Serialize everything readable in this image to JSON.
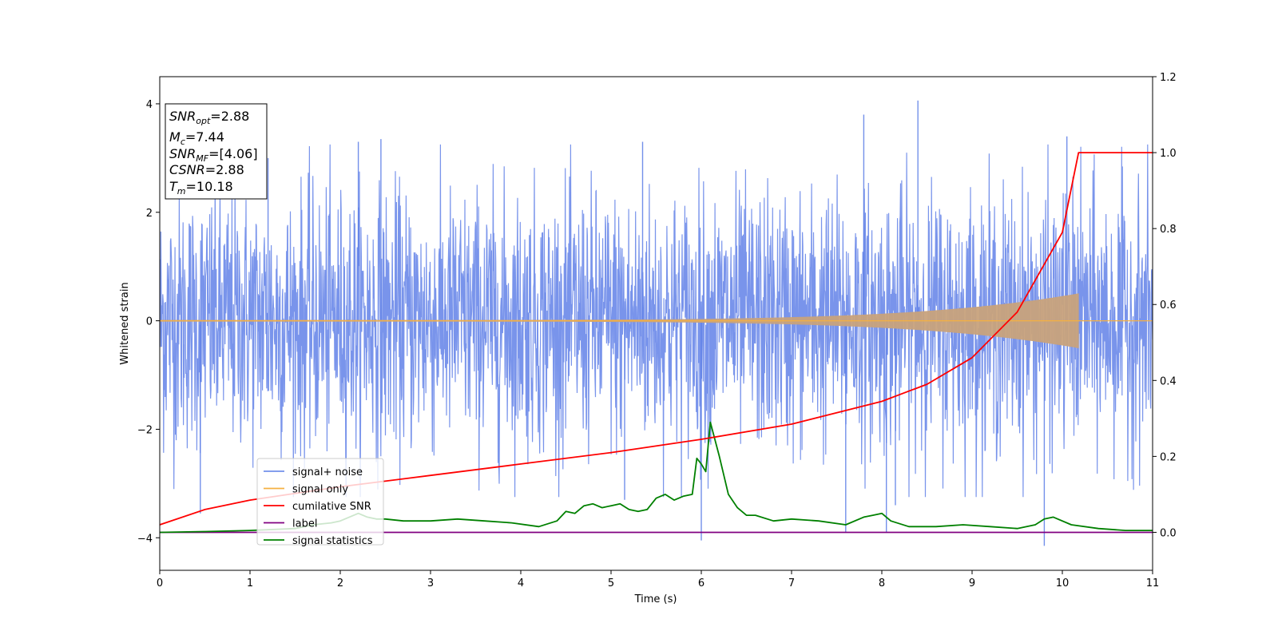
{
  "chart_data": {
    "type": "line",
    "xlabel": "Time (s)",
    "ylabel": "Whitened strain",
    "xlim": [
      0,
      11
    ],
    "ylim_left": [
      -4.6,
      4.5
    ],
    "ylim_right": [
      -0.1,
      1.2
    ],
    "x_ticks": [
      0,
      1,
      2,
      3,
      4,
      5,
      6,
      7,
      8,
      9,
      10,
      11
    ],
    "y_ticks_left": [
      -4,
      -2,
      0,
      2,
      4
    ],
    "y_ticks_right": [
      0.0,
      0.2,
      0.4,
      0.6,
      0.8,
      1.0,
      1.2
    ],
    "y_tick_labels_right": [
      "0.0",
      "0.2",
      "0.4",
      "0.6",
      "0.8",
      "1.0",
      "1.2"
    ],
    "grid": false,
    "legend_position": "lower-left",
    "annotation": {
      "snr_opt": {
        "base": "SNR",
        "sub": "opt",
        "value": "=2.88"
      },
      "mc": {
        "base": "M",
        "sub": "c",
        "value": "=7.44"
      },
      "snr_mf": {
        "base": "SNR",
        "sub": "MF",
        "value": "=[4.06]"
      },
      "csnr": {
        "base": "CSNR",
        "value": "=2.88"
      },
      "tm": {
        "base": "T",
        "sub": "m",
        "value": "=10.18"
      }
    },
    "series": [
      {
        "name": "signal+ noise",
        "axis": "left",
        "color": "#5b7ce6",
        "description_values": {
          "mean": 0,
          "typical_range": [
            -2.6,
            2.6
          ],
          "extreme_max": 4.06,
          "extreme_min": -4.15,
          "spikes": [
            [
              0.45,
              -3.55
            ],
            [
              1.2,
              3.0
            ],
            [
              2.2,
              3.3
            ],
            [
              2.45,
              3.35
            ],
            [
              5.15,
              -3.3
            ],
            [
              5.35,
              3.3
            ],
            [
              6.0,
              -4.05
            ],
            [
              7.6,
              -3.9
            ],
            [
              7.8,
              3.8
            ],
            [
              8.05,
              -3.9
            ],
            [
              8.15,
              -3.4
            ],
            [
              8.4,
              4.06
            ],
            [
              9.8,
              -4.15
            ],
            [
              10.05,
              3.4
            ]
          ]
        }
      },
      {
        "name": "signal only",
        "axis": "left",
        "color": "#f5b041",
        "chirp": {
          "start": 0,
          "end": 10.18,
          "amplitude_start": 0.01,
          "amplitude_end": 0.5
        }
      },
      {
        "name": "cumilative SNR",
        "axis": "right",
        "color": "#ff0000",
        "x": [
          0,
          0.5,
          1,
          2,
          3,
          4,
          5,
          6,
          7,
          8,
          8.5,
          9,
          9.5,
          10,
          10.18,
          11
        ],
        "values": [
          0.02,
          0.06,
          0.085,
          0.12,
          0.15,
          0.18,
          0.21,
          0.245,
          0.285,
          0.345,
          0.39,
          0.46,
          0.58,
          0.79,
          1.0,
          1.0
        ]
      },
      {
        "name": "label",
        "axis": "right",
        "color": "#800080",
        "x": [
          0,
          11
        ],
        "values": [
          0.0,
          0.0
        ]
      },
      {
        "name": "signal statistics",
        "axis": "right",
        "color": "#008000",
        "x": [
          0,
          0.5,
          1.0,
          1.5,
          1.7,
          1.9,
          2.0,
          2.1,
          2.2,
          2.3,
          2.4,
          2.5,
          2.7,
          3.0,
          3.3,
          3.6,
          3.9,
          4.2,
          4.4,
          4.5,
          4.6,
          4.7,
          4.8,
          4.9,
          5.0,
          5.1,
          5.2,
          5.3,
          5.4,
          5.5,
          5.6,
          5.7,
          5.8,
          5.9,
          5.95,
          6.0,
          6.05,
          6.1,
          6.2,
          6.3,
          6.4,
          6.5,
          6.6,
          6.8,
          7.0,
          7.3,
          7.6,
          7.8,
          7.9,
          8.0,
          8.1,
          8.3,
          8.6,
          8.9,
          9.2,
          9.5,
          9.7,
          9.8,
          9.9,
          10.1,
          10.4,
          10.7,
          11.0
        ],
        "values": [
          0.0,
          0.002,
          0.005,
          0.01,
          0.02,
          0.025,
          0.03,
          0.04,
          0.05,
          0.04,
          0.035,
          0.035,
          0.03,
          0.03,
          0.035,
          0.03,
          0.025,
          0.015,
          0.03,
          0.055,
          0.05,
          0.07,
          0.075,
          0.065,
          0.07,
          0.075,
          0.06,
          0.055,
          0.06,
          0.09,
          0.1,
          0.085,
          0.095,
          0.1,
          0.195,
          0.18,
          0.16,
          0.29,
          0.2,
          0.1,
          0.065,
          0.045,
          0.045,
          0.03,
          0.035,
          0.03,
          0.02,
          0.04,
          0.045,
          0.05,
          0.03,
          0.015,
          0.015,
          0.02,
          0.015,
          0.01,
          0.02,
          0.035,
          0.04,
          0.02,
          0.01,
          0.005,
          0.005
        ]
      }
    ]
  }
}
